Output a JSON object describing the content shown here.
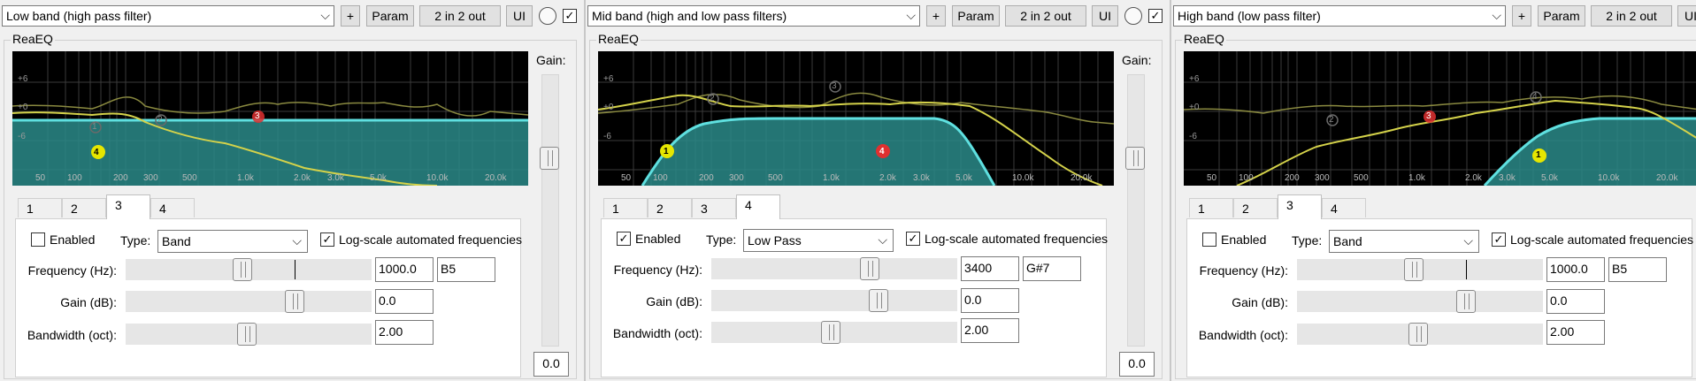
{
  "common": {
    "plus": "+",
    "param": "Param",
    "io": "2 in 2 out",
    "ui": "UI",
    "reaeq": "ReaEQ",
    "gain_label": "Gain:",
    "gain_value": "0.0",
    "enabled": "Enabled",
    "type_label": "Type:",
    "log_label": "Log-scale automated frequencies",
    "freq_label": "Frequency (Hz):",
    "gain_db_label": "Gain (dB):",
    "bw_label": "Bandwidth (oct):",
    "tabs": [
      "1",
      "2",
      "3",
      "4"
    ],
    "db_labels": [
      "+6",
      "+0",
      "-6"
    ],
    "freq_ticks": [
      "50",
      "100",
      "200",
      "300",
      "500",
      "1.0k",
      "2.0k",
      "3.0k",
      "5.0k",
      "10.0k",
      "20.0k"
    ]
  },
  "panels": [
    {
      "preset": "Low band (high pass filter)",
      "selected_tab": 2,
      "enabled": false,
      "log_checked": true,
      "type": "Band",
      "frequency": "1000.0",
      "note": "B5",
      "gain_db": "0.0",
      "bandwidth": "2.00",
      "slider_levels": {
        "freq": 0.44,
        "gain": 0.65,
        "bw": 0.46,
        "freq_tick": 0.66
      },
      "node_labels": [
        "1",
        "2",
        "3",
        "4"
      ]
    },
    {
      "preset": "Mid band (high and low pass filters)",
      "selected_tab": 3,
      "enabled": true,
      "log_checked": true,
      "type": "Low Pass",
      "frequency": "3400",
      "note": "G#7",
      "gain_db": "0.0",
      "bandwidth": "2.00",
      "slider_levels": {
        "freq": 0.68,
        "gain": 0.7,
        "bw": 0.49
      },
      "node_labels": [
        "1",
        "2",
        "3",
        "4"
      ]
    },
    {
      "preset": "High band (low pass filter)",
      "selected_tab": 2,
      "enabled": false,
      "log_checked": true,
      "type": "Band",
      "frequency": "1000.0",
      "note": "B5",
      "gain_db": "0.0",
      "bandwidth": "2.00",
      "slider_levels": {
        "freq": 0.44,
        "gain": 0.65,
        "bw": 0.46,
        "freq_tick": 0.66
      },
      "node_labels": [
        "1",
        "2",
        "3",
        "4"
      ]
    }
  ],
  "colors": {
    "graph_bg": "#000000",
    "fill": "#2a8a88",
    "curve": "#5fe0e0",
    "spectrum": "#d4d24a",
    "node_yellow": "#e6e600",
    "node_red": "#e03030"
  }
}
